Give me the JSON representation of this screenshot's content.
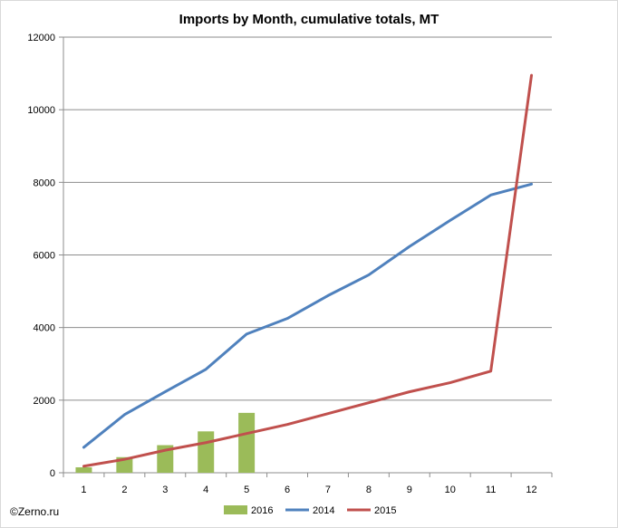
{
  "chart_data": {
    "type": "bar",
    "title": "Imports by Month, cumulative totals, MT",
    "categories": [
      "1",
      "2",
      "3",
      "4",
      "5",
      "6",
      "7",
      "8",
      "9",
      "10",
      "11",
      "12"
    ],
    "xlabel": "",
    "ylabel": "",
    "ylim": [
      0,
      12000
    ],
    "yticks": [
      0,
      2000,
      4000,
      6000,
      8000,
      10000,
      12000
    ],
    "grid": true,
    "legend_position": "bottom",
    "series": [
      {
        "name": "2016",
        "type": "bar",
        "color": "#9bbb59",
        "values": [
          150,
          430,
          760,
          1140,
          1650,
          null,
          null,
          null,
          null,
          null,
          null,
          null
        ]
      },
      {
        "name": "2014",
        "type": "line",
        "color": "#4f81bd",
        "values": [
          700,
          1600,
          2230,
          2850,
          3820,
          4250,
          4880,
          5450,
          6230,
          6950,
          7650,
          7950
        ]
      },
      {
        "name": "2015",
        "type": "line",
        "color": "#c0504d",
        "values": [
          180,
          370,
          620,
          830,
          1080,
          1330,
          1630,
          1930,
          2230,
          2480,
          2800,
          10950
        ]
      }
    ]
  },
  "source_credit": "©Zerno.ru"
}
